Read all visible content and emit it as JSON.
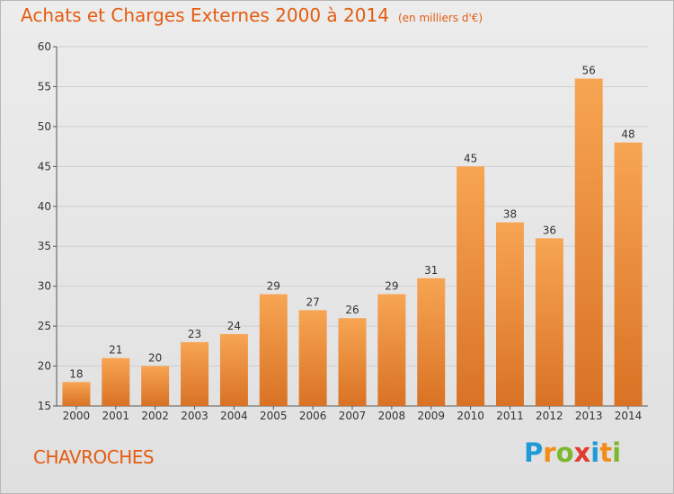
{
  "title": "Achats et Charges Externes 2000 à 2014",
  "unit_note": "(en milliers d'€)",
  "commune": "CHAVROCHES",
  "brand": {
    "text": "Proxiti",
    "letters": [
      {
        "ch": "P",
        "color": "#1e9bd7"
      },
      {
        "ch": "r",
        "color": "#f28c1a"
      },
      {
        "ch": "o",
        "color": "#7cb82f"
      },
      {
        "ch": "x",
        "color": "#e03c31"
      },
      {
        "ch": "i",
        "color": "#1e9bd7"
      },
      {
        "ch": "t",
        "color": "#f28c1a"
      },
      {
        "ch": "i",
        "color": "#7cb82f"
      }
    ]
  },
  "colors": {
    "accent": "#e45c10",
    "bar_light": "#f7a553",
    "bar_dark": "#d97224",
    "grid": "#cfcfcf",
    "axis": "#555555"
  },
  "chart_data": {
    "type": "bar",
    "categories": [
      "2000",
      "2001",
      "2002",
      "2003",
      "2004",
      "2005",
      "2006",
      "2007",
      "2008",
      "2009",
      "2010",
      "2011",
      "2012",
      "2013",
      "2014"
    ],
    "values": [
      18,
      21,
      20,
      23,
      24,
      29,
      27,
      26,
      29,
      31,
      45,
      38,
      36,
      56,
      48
    ],
    "ylim": [
      15,
      60
    ],
    "yticks": [
      15,
      20,
      25,
      30,
      35,
      40,
      45,
      50,
      55,
      60
    ],
    "grid": true,
    "xlabel": "",
    "ylabel": ""
  }
}
